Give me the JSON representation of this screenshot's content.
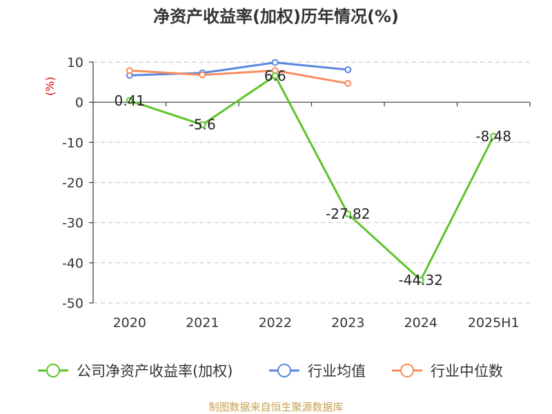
{
  "chart_data": {
    "type": "line",
    "title": "净资产收益率(加权)历年情况(%)",
    "ylabel": "(%)",
    "xlabel": "",
    "categories": [
      "2020",
      "2021",
      "2022",
      "2023",
      "2024",
      "2025H1"
    ],
    "ylim": [
      -50,
      10
    ],
    "yticks": [
      10,
      0,
      -10,
      -20,
      -30,
      -40,
      -50
    ],
    "grid": true,
    "legend_position": "bottom",
    "series": [
      {
        "name": "公司净资产收益率(加权)",
        "color": "#5cc427",
        "values": [
          0.41,
          -5.6,
          6.6,
          -27.82,
          -44.32,
          -8.48
        ],
        "data_labels": [
          "0.41",
          "-5.6",
          "6.6",
          "-27.82",
          "-44.32",
          "-8.48"
        ]
      },
      {
        "name": "行业均值",
        "color": "#5a86df",
        "values": [
          6.7,
          7.3,
          9.9,
          8.1,
          null,
          null
        ],
        "data_labels": []
      },
      {
        "name": "行业中位数",
        "color": "#f98c5e",
        "values": [
          7.9,
          6.8,
          7.9,
          4.7,
          null,
          null
        ],
        "data_labels": []
      }
    ],
    "source": "制图数据来自恒生聚源数据库",
    "colors": {
      "axis": "#333333",
      "grid": "#cccccc",
      "unit_label": "#dd0000",
      "source": "#c8a050"
    }
  }
}
